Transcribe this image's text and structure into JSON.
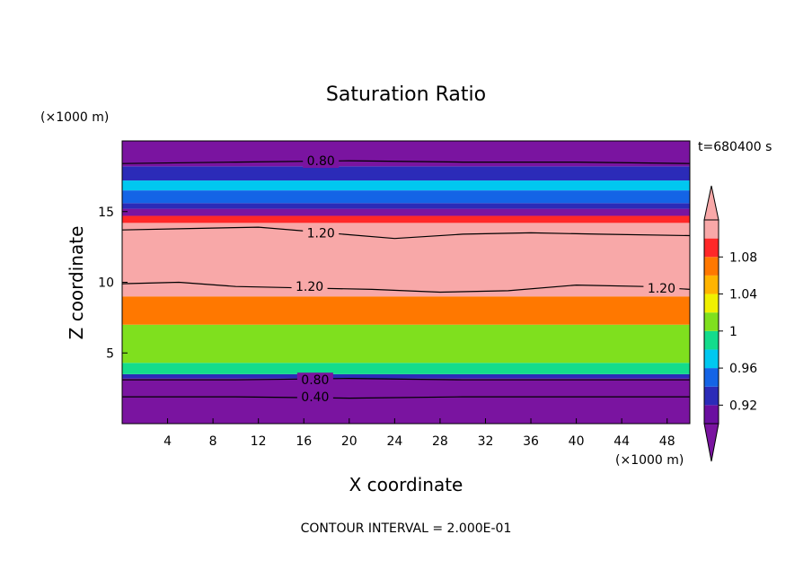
{
  "chart_data": {
    "type": "heatmap",
    "title": "Saturation Ratio",
    "xlabel": "X coordinate",
    "ylabel": "Z coordinate",
    "x_unit": "(×1000 m)",
    "y_unit": "(×1000 m)",
    "time_label": "t=680400 s",
    "contour_interval": "CONTOUR INTERVAL = 2.000E-01",
    "xlim": [
      0,
      50
    ],
    "ylim": [
      0,
      20
    ],
    "x_ticks": [
      4,
      8,
      12,
      16,
      20,
      24,
      28,
      32,
      36,
      40,
      44,
      48
    ],
    "y_ticks": [
      5,
      10,
      15
    ],
    "colorbar": {
      "tick_labels": [
        "1.08",
        "1.04",
        "1",
        "0.96",
        "0.92"
      ],
      "levels": [
        0.92,
        0.94,
        0.96,
        0.98,
        1.0,
        1.02,
        1.04,
        1.06,
        1.08,
        1.1
      ],
      "colors": [
        "#6a0fa0",
        "#2b2bb8",
        "#1464e6",
        "#00c8f0",
        "#14dc8c",
        "#7fe01e",
        "#f0f000",
        "#ffb400",
        "#ff7800",
        "#ff2828",
        "#f8a8a8"
      ],
      "over_color": "#f8a8a8",
      "under_color": "#7a14a0"
    },
    "contour_labels": [
      {
        "text": "0.80",
        "x": 17.5,
        "y": 18.6
      },
      {
        "text": "1.20",
        "x": 17.5,
        "y": 13.5
      },
      {
        "text": "1.20",
        "x": 16.5,
        "y": 9.7
      },
      {
        "text": "1.20",
        "x": 47.5,
        "y": 9.6
      },
      {
        "text": "0.80",
        "x": 17.0,
        "y": 3.1
      },
      {
        "text": "0.40",
        "x": 17.0,
        "y": 1.9
      }
    ],
    "bands": [
      {
        "from": 0.0,
        "to": 3.2,
        "value": 0.85,
        "color": "#7a14a0"
      },
      {
        "from": 3.2,
        "to": 3.5,
        "value": 0.92,
        "color": "#2b2bb8"
      },
      {
        "from": 3.5,
        "to": 4.3,
        "value": 1.0,
        "color": "#14dc8c"
      },
      {
        "from": 4.3,
        "to": 7.0,
        "value": 1.01,
        "color": "#7fe01e"
      },
      {
        "from": 7.0,
        "to": 9.0,
        "value": 1.07,
        "color": "#ff7800"
      },
      {
        "from": 9.0,
        "to": 14.2,
        "value": 1.2,
        "color": "#f8a8a8"
      },
      {
        "from": 14.2,
        "to": 14.7,
        "value": 1.09,
        "color": "#ff2828"
      },
      {
        "from": 14.7,
        "to": 15.2,
        "value": 0.9,
        "color": "#7a14a0"
      },
      {
        "from": 15.2,
        "to": 15.6,
        "value": 0.93,
        "color": "#2b2bb8"
      },
      {
        "from": 15.6,
        "to": 16.5,
        "value": 0.97,
        "color": "#1464e6"
      },
      {
        "from": 16.5,
        "to": 17.2,
        "value": 0.99,
        "color": "#00c8f0"
      },
      {
        "from": 17.2,
        "to": 18.2,
        "value": 0.92,
        "color": "#2b2bb8"
      },
      {
        "from": 18.2,
        "to": 20.0,
        "value": 0.8,
        "color": "#7a14a0"
      }
    ],
    "contours": [
      {
        "level": "0.80",
        "points": [
          [
            0,
            18.4
          ],
          [
            10,
            18.5
          ],
          [
            20,
            18.6
          ],
          [
            30,
            18.5
          ],
          [
            40,
            18.5
          ],
          [
            50,
            18.4
          ]
        ]
      },
      {
        "level": "1.20",
        "points": [
          [
            0,
            13.7
          ],
          [
            6,
            13.8
          ],
          [
            12,
            13.9
          ],
          [
            18,
            13.5
          ],
          [
            24,
            13.1
          ],
          [
            30,
            13.4
          ],
          [
            36,
            13.5
          ],
          [
            42,
            13.4
          ],
          [
            50,
            13.3
          ]
        ]
      },
      {
        "level": "1.20",
        "points": [
          [
            0,
            9.9
          ],
          [
            5,
            10.0
          ],
          [
            10,
            9.7
          ],
          [
            16,
            9.6
          ],
          [
            22,
            9.5
          ],
          [
            28,
            9.3
          ],
          [
            34,
            9.4
          ],
          [
            40,
            9.8
          ],
          [
            46,
            9.7
          ],
          [
            50,
            9.5
          ]
        ]
      },
      {
        "level": "0.80",
        "points": [
          [
            0,
            3.1
          ],
          [
            10,
            3.1
          ],
          [
            20,
            3.2
          ],
          [
            30,
            3.1
          ],
          [
            40,
            3.1
          ],
          [
            50,
            3.1
          ]
        ]
      },
      {
        "level": "0.40",
        "points": [
          [
            0,
            1.9
          ],
          [
            10,
            1.9
          ],
          [
            20,
            1.8
          ],
          [
            30,
            1.9
          ],
          [
            40,
            1.9
          ],
          [
            50,
            1.9
          ]
        ]
      }
    ]
  }
}
